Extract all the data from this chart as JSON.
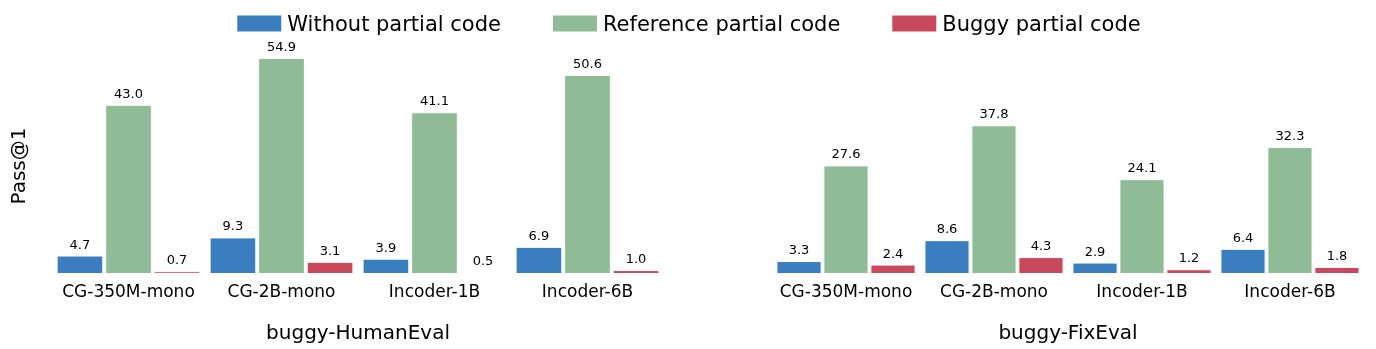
{
  "chart_data": [
    {
      "type": "bar",
      "ylabel": "Pass@1",
      "xlabel": "buggy-HumanEval",
      "categories": [
        "CG-350M-mono",
        "CG-2B-mono",
        "Incoder-1B",
        "Incoder-6B"
      ],
      "series": [
        {
          "name": "Without partial code",
          "color": "#3a7ebf",
          "values": [
            4.7,
            9.3,
            3.9,
            6.9
          ],
          "value_labels": [
            "4.7",
            "9.3",
            "3.9",
            "6.9"
          ]
        },
        {
          "name": "Reference partial code",
          "color": "#8fbc97",
          "values": [
            43.0,
            54.9,
            41.1,
            50.6
          ],
          "value_labels": [
            "43.0",
            "54.9",
            "41.1",
            "50.6"
          ]
        },
        {
          "name": "Buggy partial code",
          "color": "#c8495c",
          "values": [
            0.7,
            3.1,
            0.5,
            1.0
          ],
          "value_labels": [
            "0.7",
            "3.1",
            "0.5",
            "1.0"
          ]
        }
      ],
      "legend": "top",
      "grid": false
    },
    {
      "type": "bar",
      "xlabel": "buggy-FixEval",
      "categories": [
        "CG-350M-mono",
        "CG-2B-mono",
        "Incoder-1B",
        "Incoder-6B"
      ],
      "series": [
        {
          "color": "#3a7ebf",
          "values": [
            3.3,
            8.6,
            2.9,
            6.4
          ],
          "value_labels": [
            "3.3",
            "8.6",
            "2.9",
            "6.4"
          ]
        },
        {
          "color": "#8fbc97",
          "values": [
            27.6,
            37.8,
            24.1,
            32.3
          ],
          "value_labels": [
            "27.6",
            "37.8",
            "24.1",
            "32.3"
          ]
        },
        {
          "color": "#c8495c",
          "values": [
            2.4,
            4.3,
            1.2,
            1.8
          ],
          "value_labels": [
            "2.4",
            "4.3",
            "1.2",
            "1.8"
          ]
        }
      ],
      "grid": false
    }
  ]
}
